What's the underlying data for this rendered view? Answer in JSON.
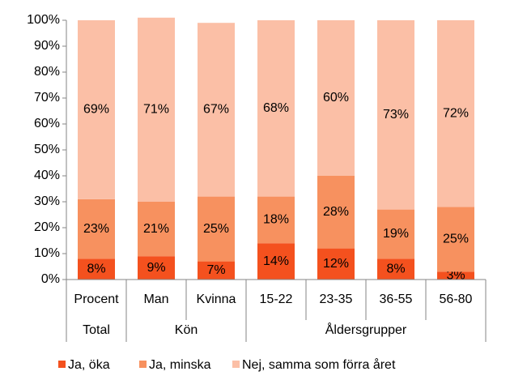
{
  "chart_data": {
    "type": "bar",
    "stacked": true,
    "categories": [
      "Procent",
      "Man",
      "Kvinna",
      "15-22",
      "23-35",
      "36-55",
      "56-80"
    ],
    "groups": [
      {
        "name": "Total",
        "size": 1
      },
      {
        "name": "Kön",
        "size": 2
      },
      {
        "name": "Åldersgrupper",
        "size": 4
      }
    ],
    "series": [
      {
        "name": "Ja, öka",
        "color": "#f4511e",
        "values": [
          8,
          9,
          7,
          14,
          12,
          8,
          3
        ],
        "value_labels": [
          "8%",
          "9%",
          "7%",
          "14%",
          "12%",
          "8%",
          "3%"
        ]
      },
      {
        "name": "Ja, minska",
        "color": "#f7915f",
        "values": [
          23,
          21,
          25,
          18,
          28,
          19,
          25
        ],
        "value_labels": [
          "23%",
          "21%",
          "25%",
          "18%",
          "28%",
          "19%",
          "25%"
        ]
      },
      {
        "name": "Nej, samma som förra året",
        "color": "#fbbfa6",
        "values": [
          69,
          71,
          67,
          68,
          60,
          73,
          72
        ],
        "value_labels": [
          "69%",
          "71%",
          "67%",
          "68%",
          "60%",
          "73%",
          "72%"
        ]
      }
    ],
    "ylim": [
      0,
      100
    ],
    "yticks": [
      {
        "value": 0,
        "label": "0%"
      },
      {
        "value": 10,
        "label": "10%"
      },
      {
        "value": 20,
        "label": "20%"
      },
      {
        "value": 30,
        "label": "30%"
      },
      {
        "value": 40,
        "label": "40%"
      },
      {
        "value": 50,
        "label": "50%"
      },
      {
        "value": 60,
        "label": "60%"
      },
      {
        "value": 70,
        "label": "70%"
      },
      {
        "value": 80,
        "label": "80%"
      },
      {
        "value": 90,
        "label": "90%"
      },
      {
        "value": 100,
        "label": "100%"
      }
    ],
    "legend": "bottom"
  }
}
